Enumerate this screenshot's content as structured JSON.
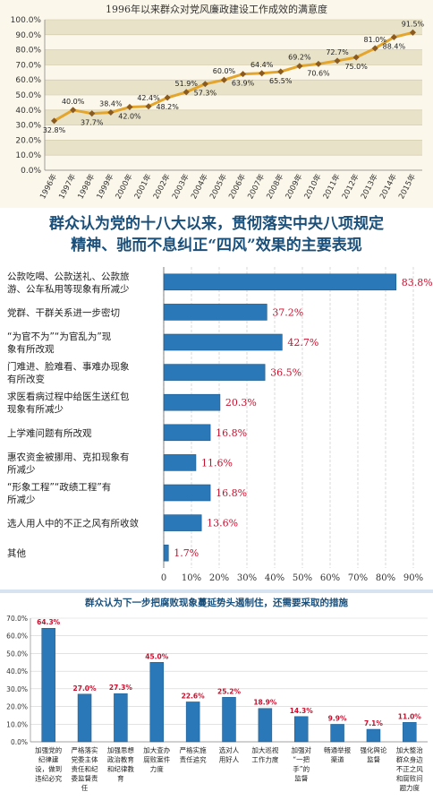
{
  "chart_data": [
    {
      "type": "line",
      "title": "1996年以来群众对党风廉政建设工作成效的满意度",
      "x": [
        "1996年",
        "1997年",
        "1998年",
        "1999年",
        "2000年",
        "2001年",
        "2002年",
        "2003年",
        "2004年",
        "2005年",
        "2006年",
        "2007年",
        "2008年",
        "2009年",
        "2010年",
        "2011年",
        "2012年",
        "2013年",
        "2014年",
        "2015年"
      ],
      "y": [
        32.8,
        40.0,
        37.7,
        38.4,
        42.0,
        42.4,
        48.2,
        51.9,
        57.3,
        60.0,
        63.9,
        64.4,
        65.5,
        69.2,
        70.6,
        72.7,
        75.0,
        81.0,
        88.4,
        91.5
      ],
      "data_labels": [
        "32.8%",
        "40.0%",
        "37.7%",
        "38.4%",
        "42.0%",
        "42.4%",
        "48.2%",
        "51.9%",
        "57.3%",
        "60.0%",
        "63.9%",
        "64.4%",
        "65.5%",
        "69.2%",
        "70.6%",
        "72.7%",
        "75.0%",
        "81.0%",
        "88.4%",
        "91.5%"
      ],
      "yticks": [
        "0.0%",
        "10.0%",
        "20.0%",
        "30.0%",
        "40.0%",
        "50.0%",
        "60.0%",
        "70.0%",
        "80.0%",
        "90.0%",
        "100.0%"
      ],
      "ylim": [
        0,
        100
      ],
      "colors": {
        "line": "#e3a52c",
        "marker": "#8a5a1e",
        "grid_band": "#e8e2c8"
      }
    },
    {
      "type": "bar",
      "orientation": "horizontal",
      "title": "群众认为党的十八大以来，贯彻落实中央八项规定精神、驰而不息纠正“四风”效果的主要表现",
      "title_lines": [
        "群众认为党的十八大以来，贯彻落实中央八项规定",
        "精神、驰而不息纠正“四风”效果的主要表现"
      ],
      "categories": [
        [
          "公款吃喝、公款送礼、公款旅",
          "游、公车私用等现象有所减少"
        ],
        [
          "党群、干群关系进一步密切"
        ],
        [
          "“为官不为”“为官乱为”现",
          "象有所改观"
        ],
        [
          "门难进、脸难看、事难办现象",
          "有所改变"
        ],
        [
          "求医看病过程中给医生送红包",
          "现象有所减少"
        ],
        [
          "上学难问题有所改观"
        ],
        [
          "惠农资金被挪用、克扣现象有",
          "所减少"
        ],
        [
          "“形象工程”“政绩工程”有",
          "所减少"
        ],
        [
          "选人用人中的不正之风有所收敛"
        ],
        [
          "其他"
        ]
      ],
      "values": [
        83.8,
        37.2,
        42.7,
        36.5,
        20.3,
        16.8,
        11.6,
        16.8,
        13.6,
        1.7
      ],
      "data_labels": [
        "83.8%",
        "37.2%",
        "42.7%",
        "36.5%",
        "20.3%",
        "16.8%",
        "11.6%",
        "16.8%",
        "13.6%",
        "1.7%"
      ],
      "xticks": [
        "0",
        "10%",
        "20%",
        "30%",
        "40%",
        "50%",
        "60%",
        "70%",
        "80%",
        "90%"
      ],
      "xlim": [
        0,
        90
      ],
      "colors": {
        "bar": "#2a78b8",
        "label": "#c8102e"
      }
    },
    {
      "type": "bar",
      "title": "群众认为下一步把腐败现象蔓延势头遏制住，还需要采取的措施",
      "categories": [
        [
          "加强党的",
          "纪律建",
          "设，做到",
          "违纪必究"
        ],
        [
          "严格落实",
          "党委主体",
          "责任和纪",
          "委监督责",
          "任"
        ],
        [
          "加强思想",
          "政治教育",
          "和纪律教",
          "育"
        ],
        [
          "加大查办",
          "腐败案件",
          "力度"
        ],
        [
          "严格实施",
          "责任追究"
        ],
        [
          "选对人",
          "用好人"
        ],
        [
          "加大巡视",
          "工作力度"
        ],
        [
          "加强对",
          "“一把",
          "手”的",
          "监督"
        ],
        [
          "畅通举报",
          "渠道"
        ],
        [
          "强化舆论",
          "监督"
        ],
        [
          "加大整治",
          "群众身边",
          "不正之风",
          "和腐败问",
          "题力度"
        ]
      ],
      "values": [
        64.3,
        27.0,
        27.3,
        45.0,
        22.6,
        25.2,
        18.9,
        14.3,
        9.9,
        7.1,
        11.0
      ],
      "data_labels": [
        "64.3%",
        "27.0%",
        "27.3%",
        "45.0%",
        "22.6%",
        "25.2%",
        "18.9%",
        "14.3%",
        "9.9%",
        "7.1%",
        "11.0%"
      ],
      "yticks": [
        "0.0%",
        "10.0%",
        "20.0%",
        "30.0%",
        "40.0%",
        "50.0%",
        "60.0%",
        "70.0%"
      ],
      "ylim": [
        0,
        70
      ],
      "colors": {
        "bar": "#2a78b8",
        "label": "#c8102e"
      }
    }
  ]
}
